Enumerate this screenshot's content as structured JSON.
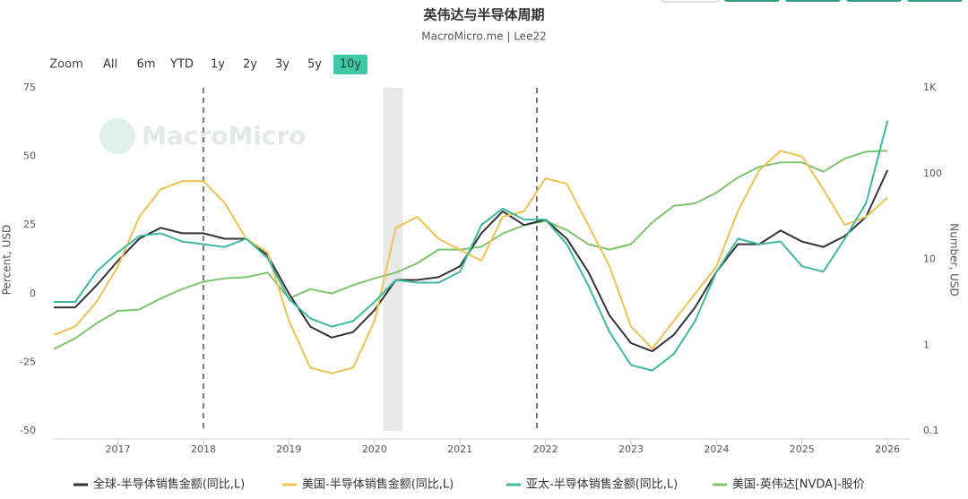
{
  "chart_data": {
    "type": "line",
    "title": "英伟达与半导体周期",
    "subtitle": "MacroMicro.me | Lee22",
    "watermark": "MacroMicro",
    "range_selector": {
      "label": "Zoom",
      "buttons": [
        "All",
        "6m",
        "YTD",
        "1y",
        "2y",
        "3y",
        "5y",
        "10y"
      ],
      "selected": 7
    },
    "y_label": "Percent, USD",
    "y2_label": "Number, USD",
    "x": [
      2016.25,
      2016.5,
      2016.75,
      2017.0,
      2017.25,
      2017.5,
      2017.75,
      2018.0,
      2018.25,
      2018.5,
      2018.75,
      2019.0,
      2019.25,
      2019.5,
      2019.75,
      2020.0,
      2020.25,
      2020.5,
      2020.75,
      2021.0,
      2021.25,
      2021.5,
      2021.75,
      2022.0,
      2022.25,
      2022.5,
      2022.75,
      2023.0,
      2023.25,
      2023.5,
      2023.75,
      2024.0,
      2024.25,
      2024.5,
      2024.75,
      2025.0,
      2025.25,
      2025.5,
      2025.75,
      2026.0
    ],
    "xlim": [
      2016.25,
      2026.26
    ],
    "xticks": [
      2017,
      2018,
      2019,
      2020,
      2021,
      2022,
      2023,
      2024,
      2025,
      2026
    ],
    "ylim": [
      -50,
      75
    ],
    "yticks": [
      -50,
      -25,
      0,
      25,
      50,
      75
    ],
    "y2lim": [
      0.1,
      1000
    ],
    "y2ticks": [
      0.1,
      1,
      10,
      100,
      {
        "value": 1000,
        "label": "1K"
      }
    ],
    "y2_log": true,
    "vlines": [
      2018,
      2021.9
    ],
    "shaded": [
      2020.1,
      2020.33
    ],
    "series": [
      {
        "name": "全球-半导体销售金额(同比,L)",
        "color": "#333333",
        "values": [
          -5,
          -5,
          3,
          12,
          20,
          24,
          22,
          22,
          20,
          20,
          14,
          0,
          -12,
          -16,
          -14,
          -6,
          5,
          5,
          6,
          10,
          22,
          30,
          25,
          27,
          20,
          8,
          -8,
          -18,
          -21,
          -15,
          -5,
          8,
          18,
          18,
          23,
          19,
          17,
          21,
          28,
          45
        ]
      },
      {
        "name": "美国-半导体销售金额(同比,L)",
        "color": "#f0c050",
        "values": [
          -15,
          -12,
          -3,
          10,
          28,
          38,
          41,
          41,
          33,
          20,
          15,
          -10,
          -27,
          -29,
          -27,
          -10,
          24,
          28,
          20,
          16,
          12,
          28,
          30,
          42,
          40,
          25,
          10,
          -12,
          -20,
          -10,
          0,
          10,
          30,
          45,
          52,
          50,
          38,
          25,
          28,
          35
        ]
      },
      {
        "name": "亚太-半导体销售金额(同比,L)",
        "color": "#3cb9a0",
        "values": [
          -3,
          -3,
          8,
          15,
          21,
          22,
          19,
          18,
          17,
          20,
          13,
          -2,
          -9,
          -12,
          -10,
          -3,
          5,
          4,
          4,
          8,
          25,
          31,
          27,
          27,
          18,
          3,
          -14,
          -26,
          -28,
          -22,
          -10,
          8,
          20,
          18,
          19,
          10,
          8,
          20,
          33,
          63
        ]
      },
      {
        "name": "美国-英伟达[NVDA]-股价",
        "color": "#7cc56c",
        "axis": "y2",
        "values": [
          0.9,
          1.2,
          1.8,
          2.5,
          2.6,
          3.5,
          4.5,
          5.5,
          6,
          6.2,
          7,
          3.5,
          4.5,
          4,
          5,
          6,
          7,
          9,
          13,
          13,
          14,
          20,
          25,
          28,
          22,
          15,
          13,
          15,
          27,
          42,
          45,
          60,
          90,
          120,
          135,
          135,
          105,
          150,
          180,
          185
        ]
      }
    ]
  }
}
